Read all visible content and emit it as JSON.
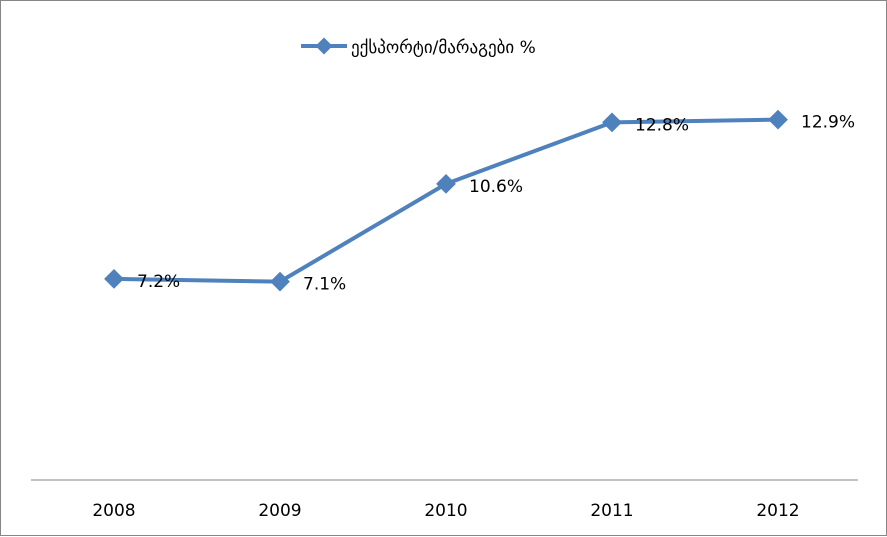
{
  "chart_data": {
    "type": "line",
    "categories": [
      "2008",
      "2009",
      "2010",
      "2011",
      "2012"
    ],
    "series": [
      {
        "name": "ექსპორტი/მარაგები %",
        "values": [
          7.2,
          7.1,
          10.6,
          12.8,
          12.9
        ],
        "labels": [
          "7.2%",
          "7.1%",
          "10.6%",
          "12.8%",
          "12.9%"
        ],
        "color": "#4f81bd"
      }
    ],
    "ylim": [
      0,
      16
    ],
    "grid": false,
    "legend": "top",
    "axis_color": "#868686"
  }
}
